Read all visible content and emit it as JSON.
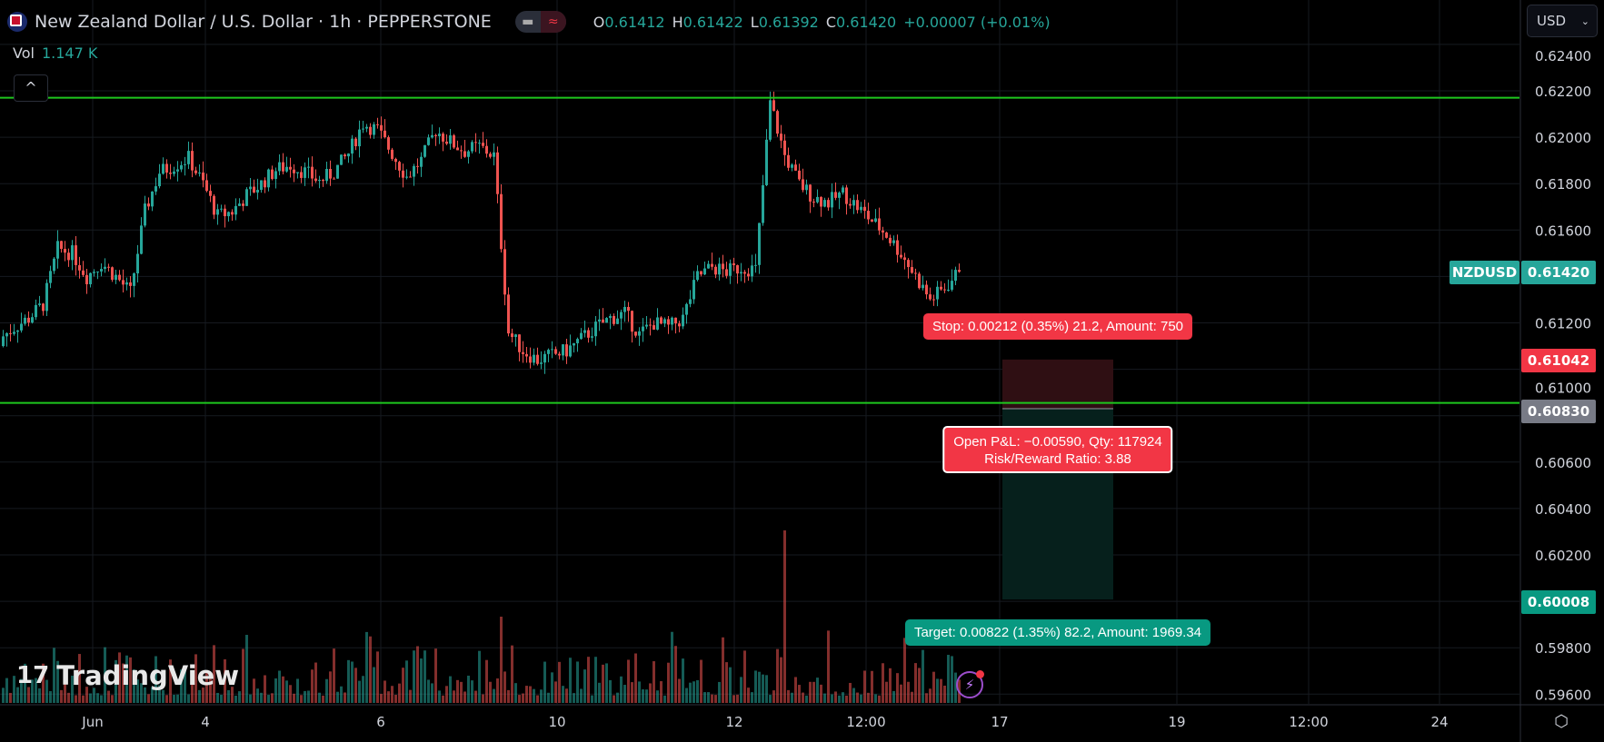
{
  "header": {
    "title": "New Zealand Dollar / U.S. Dollar · 1h · PEPPERSTONE",
    "ohlc": {
      "o_label": "O",
      "o": "0.61412",
      "h_label": "H",
      "h": "0.61422",
      "l_label": "L",
      "l": "0.61392",
      "c_label": "C",
      "c": "0.61420",
      "change": "+0.00007 (+0.01%)"
    },
    "vol_label": "Vol",
    "vol_value": "1.147 K",
    "currency": "USD"
  },
  "colors": {
    "up": "#26a69a",
    "down": "#ef5350",
    "hline": "#1ec71e",
    "stop": "#f23645",
    "target": "#089981",
    "entry": "#787b86"
  },
  "price_axis": {
    "ticks": [
      "0.62400",
      "0.62200",
      "0.62000",
      "0.61800",
      "0.61600",
      "0.61200",
      "0.61000",
      "0.60600",
      "0.60400",
      "0.60200",
      "0.59800",
      "0.59600"
    ],
    "symbol_label": "NZDUSD",
    "last_price": "0.61420",
    "stop_price": "0.61042",
    "entry_price": "0.60830",
    "target_price": "0.60008"
  },
  "time_axis": {
    "ticks": [
      "Jun",
      "4",
      "6",
      "10",
      "12",
      "12:00",
      "17",
      "19",
      "12:00",
      "24"
    ]
  },
  "horizontal_lines": [
    0.6217,
    0.60855
  ],
  "position": {
    "stop_text": "Stop: 0.00212 (0.35%) 21.2, Amount: 750",
    "pnl_text": "Open P&L: −0.00590, Qty: 117924",
    "rr_text": "Risk/Reward Ratio: 3.88",
    "target_text": "Target: 0.00822 (1.35%) 82.2, Amount: 1969.34"
  },
  "branding": "TradingView",
  "chart_data": {
    "type": "candlestick",
    "ylim": [
      0.5952,
      0.6246
    ],
    "grid": true,
    "closes_sampled": [
      0.6113,
      0.6118,
      0.6122,
      0.6128,
      0.6152,
      0.615,
      0.614,
      0.6146,
      0.614,
      0.6133,
      0.6168,
      0.6185,
      0.6188,
      0.6191,
      0.618,
      0.6166,
      0.6168,
      0.6175,
      0.618,
      0.6186,
      0.6188,
      0.6185,
      0.6181,
      0.6185,
      0.6193,
      0.6206,
      0.6203,
      0.6193,
      0.6183,
      0.619,
      0.6203,
      0.6198,
      0.6194,
      0.6196,
      0.6192,
      0.6116,
      0.6108,
      0.6104,
      0.6106,
      0.6108,
      0.6113,
      0.6118,
      0.6122,
      0.6124,
      0.6115,
      0.612,
      0.6118,
      0.6122,
      0.614,
      0.6144,
      0.6142,
      0.6144,
      0.6143,
      0.6215,
      0.6192,
      0.618,
      0.6174,
      0.6172,
      0.6176,
      0.617,
      0.6164,
      0.6158,
      0.615,
      0.614,
      0.613,
      0.6135,
      0.6142
    ]
  }
}
